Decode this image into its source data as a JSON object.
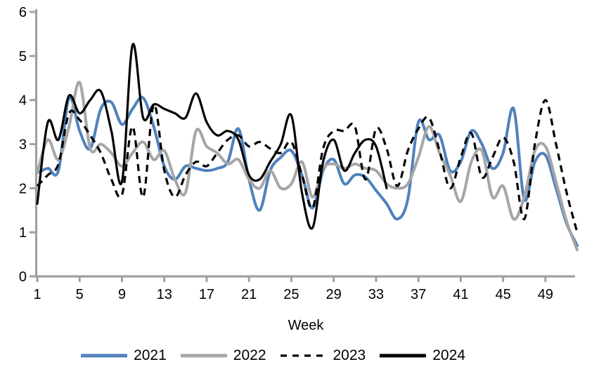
{
  "chart_data": {
    "type": "line",
    "title": "",
    "xlabel": "Week",
    "ylabel": "",
    "xlim": [
      1,
      52
    ],
    "ylim": [
      0,
      6
    ],
    "x_ticks": [
      1,
      5,
      9,
      13,
      17,
      21,
      25,
      29,
      33,
      37,
      41,
      45,
      49
    ],
    "y_ticks": [
      0,
      1,
      2,
      3,
      4,
      5,
      6
    ],
    "grid": false,
    "legend_position": "bottom",
    "axis_color": "#a0a0a0",
    "series": [
      {
        "name": "2021",
        "color": "#4F81BD",
        "style": "solid",
        "width": 4,
        "x_start": 1,
        "values": [
          2.35,
          2.45,
          2.4,
          4.05,
          3.3,
          2.9,
          3.8,
          3.95,
          3.45,
          3.8,
          4.05,
          3.4,
          2.5,
          2.2,
          2.5,
          2.45,
          2.4,
          2.45,
          2.6,
          3.35,
          2.2,
          1.5,
          2.4,
          2.7,
          2.85,
          2.3,
          1.55,
          2.4,
          2.65,
          2.1,
          2.3,
          2.25,
          1.95,
          1.65,
          1.3,
          1.75,
          3.5,
          3.1,
          3.2,
          2.4,
          2.6,
          3.3,
          3.0,
          2.45,
          2.8,
          3.8,
          1.75,
          2.6,
          2.75,
          2.0,
          1.2,
          0.7
        ]
      },
      {
        "name": "2022",
        "color": "#A6A6A6",
        "style": "solid",
        "width": 4,
        "x_start": 1,
        "values": [
          2.35,
          3.1,
          2.65,
          3.4,
          4.4,
          2.9,
          3.0,
          2.8,
          2.5,
          2.8,
          3.05,
          2.65,
          2.85,
          2.2,
          1.9,
          3.3,
          2.95,
          2.8,
          2.55,
          2.65,
          2.2,
          2.0,
          2.4,
          2.0,
          2.1,
          2.6,
          1.8,
          2.45,
          2.55,
          2.45,
          2.55,
          2.45,
          2.4,
          2.1,
          2.0,
          2.1,
          2.7,
          3.4,
          2.8,
          2.3,
          1.7,
          2.6,
          2.85,
          1.8,
          2.05,
          1.3,
          1.8,
          2.85,
          2.95,
          2.15,
          1.25,
          0.6
        ]
      },
      {
        "name": "2023",
        "color": "#000000",
        "style": "dashed",
        "width": 3.2,
        "x_start": 1,
        "values": [
          2.05,
          2.3,
          2.55,
          3.7,
          3.55,
          3.2,
          2.8,
          2.2,
          1.85,
          3.4,
          1.8,
          3.9,
          2.4,
          1.8,
          2.3,
          2.6,
          2.5,
          2.8,
          3.1,
          3.2,
          2.95,
          3.05,
          2.9,
          2.8,
          3.05,
          2.3,
          1.55,
          2.9,
          3.3,
          3.3,
          3.4,
          2.2,
          3.35,
          2.9,
          2.05,
          2.85,
          3.35,
          3.6,
          2.85,
          2.0,
          2.7,
          3.25,
          2.25,
          2.7,
          3.15,
          2.6,
          1.3,
          3.0,
          4.0,
          3.0,
          1.9,
          1.0
        ]
      },
      {
        "name": "2024",
        "color": "#000000",
        "style": "solid",
        "width": 3.2,
        "x_start": 1,
        "values": [
          1.65,
          3.5,
          3.1,
          4.1,
          3.7,
          4.0,
          4.2,
          3.3,
          2.15,
          5.25,
          3.6,
          3.9,
          3.8,
          3.7,
          3.6,
          4.15,
          3.5,
          3.2,
          3.3,
          3.1,
          2.3,
          2.2,
          2.6,
          3.0,
          3.65,
          1.9,
          1.1,
          2.6,
          3.1,
          2.4,
          2.8,
          3.1,
          2.95,
          2.0
        ]
      }
    ]
  }
}
